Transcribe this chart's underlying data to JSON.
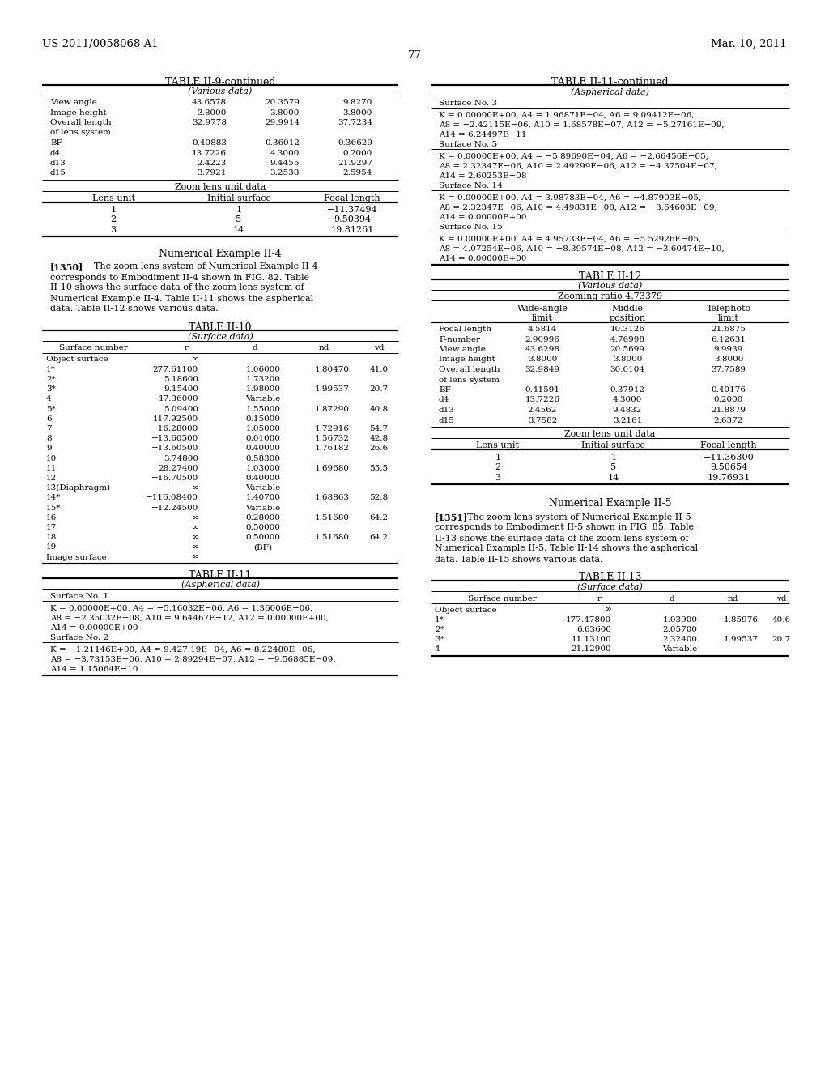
{
  "page_number": "77",
  "header_left": "US 2011/0058068 A1",
  "header_right": "Mar. 10, 2011",
  "bg_color": "#ffffff",
  "table_ii9_title": "TABLE II-9-continued",
  "table_ii9_subtitle": "(Various data)",
  "table_ii9_various": [
    [
      "View angle",
      "43.6578",
      "20.3579",
      "9.8270"
    ],
    [
      "Image height",
      "3.8000",
      "3.8000",
      "3.8000"
    ],
    [
      "Overall length",
      "32.9778",
      "29.9914",
      "37.7234"
    ],
    [
      "of lens system",
      "",
      "",
      ""
    ],
    [
      "BF",
      "0.40883",
      "0.36012",
      "0.36629"
    ],
    [
      "d4",
      "13.7226",
      "4.3000",
      "0.2000"
    ],
    [
      "d13",
      "2.4223",
      "9.4455",
      "21.9297"
    ],
    [
      "d15",
      "3.7921",
      "3.2538",
      "2.5954"
    ]
  ],
  "table_ii9_zoom_subtitle": "Zoom lens unit data",
  "table_ii9_zoom_headers": [
    "Lens unit",
    "Initial surface",
    "Focal length"
  ],
  "table_ii9_zoom_rows": [
    [
      "1",
      "1",
      "−11.37494"
    ],
    [
      "2",
      "5",
      "9.50394"
    ],
    [
      "3",
      "14",
      "19.81261"
    ]
  ],
  "numerical_example_ii4_title": "Numerical Example II-4",
  "table_ii10_title": "TABLE II-10",
  "table_ii10_subtitle": "(Surface data)",
  "table_ii10_headers": [
    "Surface number",
    "r",
    "d",
    "nd",
    "vd"
  ],
  "table_ii10_rows": [
    [
      "Object surface",
      "∞",
      "",
      "",
      ""
    ],
    [
      "1*",
      "277.61100",
      "1.06000",
      "1.80470",
      "41.0"
    ],
    [
      "2*",
      "5.18600",
      "1.73200",
      "",
      ""
    ],
    [
      "3*",
      "9.15400",
      "1.98000",
      "1.99537",
      "20.7"
    ],
    [
      "4",
      "17.36000",
      "Variable",
      "",
      ""
    ],
    [
      "5*",
      "5.09400",
      "1.55000",
      "1.87290",
      "40.8"
    ],
    [
      "6",
      "117.92500",
      "0.15000",
      "",
      ""
    ],
    [
      "7",
      "−16.28000",
      "1.05000",
      "1.72916",
      "54.7"
    ],
    [
      "8",
      "−13.60500",
      "0.01000",
      "1.56732",
      "42.8"
    ],
    [
      "9",
      "−13.60500",
      "0.40000",
      "1.76182",
      "26.6"
    ],
    [
      "10",
      "3.74800",
      "0.58300",
      "",
      ""
    ],
    [
      "11",
      "28.27400",
      "1.03000",
      "1.69680",
      "55.5"
    ],
    [
      "12",
      "−16.70500",
      "0.40000",
      "",
      ""
    ],
    [
      "13(Diaphragm)",
      "∞",
      "Variable",
      "",
      ""
    ],
    [
      "14*",
      "−116.08400",
      "1.40700",
      "1.68863",
      "52.8"
    ],
    [
      "15*",
      "−12.24500",
      "Variable",
      "",
      ""
    ],
    [
      "16",
      "∞",
      "0.28000",
      "1.51680",
      "64.2"
    ],
    [
      "17",
      "∞",
      "0.50000",
      "",
      ""
    ],
    [
      "18",
      "∞",
      "0.50000",
      "1.51680",
      "64.2"
    ],
    [
      "19",
      "∞",
      "(BF)",
      "",
      ""
    ],
    [
      "Image surface",
      "∞",
      "",
      "",
      ""
    ]
  ],
  "table_ii11_title": "TABLE II-11",
  "table_ii11_subtitle": "(Aspherical data)",
  "table_ii11_surface1": "Surface No. 1",
  "table_ii11_s1_text": "K = 0.00000E+00, A4 = −5.16032E−06, A6 = 1.36006E−06,\nA8 = −2.35032E−08, A10 = 9.64467E−12, A12 = 0.00000E+00,\nA14 = 0.00000E+00",
  "table_ii11_surface2": "Surface No. 2",
  "table_ii11_s2_text": "K = −1.21146E+00, A4 = 9.427 19E−04, A6 = 8.22480E−06,\nA8 = −3.73153E−06, A10 = 2.89294E−07, A12 = −9.56885E−09,\nA14 = 1.15064E−10",
  "table_ii11_continued_title": "TABLE II-11-continued",
  "table_ii11_continued_subtitle": "(Aspherical data)",
  "table_ii11_s3_header": "Surface No. 3",
  "table_ii11_s3_text": "K = 0.00000E+00, A4 = 1.96871E−04, A6 = 9.09412E−06,\nA8 = −2.42115E−06, A10 = 1.68578E−07, A12 = −5.27161E−09,\nA14 = 6.24497E−11",
  "table_ii11_s5_header": "Surface No. 5",
  "table_ii11_s5_text": "K = 0.00000E+00, A4 = −5.89690E−04, A6 = −2.66456E−05,\nA8 = 2.32347E−06, A10 = 2.49299E−06, A12 = −4.37504E−07,\nA14 = 2.60253E−08",
  "table_ii11_s14_header": "Surface No. 14",
  "table_ii11_s14_text": "K = 0.00000E+00, A4 = 3.98783E−04, A6 = −4.87903E−05,\nA8 = 2.32347E−06, A10 = 4.49831E−08, A12 = −3.64603E−09,\nA14 = 0.00000E+00",
  "table_ii11_s15_header": "Surface No. 15",
  "table_ii11_s15_text": "K = 0.00000E+00, A4 = 4.95733E−04, A6 = −5.52926E−05,\nA8 = 4.07254E−06, A10 = −8.39574E−08, A12 = −3.60474E−10,\nA14 = 0.00000E+00",
  "table_ii12_title": "TABLE II-12",
  "table_ii12_subtitle": "(Various data)",
  "table_ii12_zoom_ratio": "Zooming ratio 4.73379",
  "table_ii12_col_headers_line1": [
    "",
    "Wide-angle",
    "Middle",
    "Telephoto"
  ],
  "table_ii12_col_headers_line2": [
    "",
    "limit",
    "position",
    "limit"
  ],
  "table_ii12_various": [
    [
      "Focal length",
      "4.5814",
      "10.3126",
      "21.6875"
    ],
    [
      "F-number",
      "2.90996",
      "4.76998",
      "6.12631"
    ],
    [
      "View angle",
      "43.6298",
      "20.5699",
      "9.9939"
    ],
    [
      "Image height",
      "3.8000",
      "3.8000",
      "3.8000"
    ],
    [
      "Overall length",
      "32.9849",
      "30.0104",
      "37.7589"
    ],
    [
      "of lens system",
      "",
      "",
      ""
    ],
    [
      "BF",
      "0.41591",
      "0.37912",
      "0.40176"
    ],
    [
      "d4",
      "13.7226",
      "4.3000",
      "0.2000"
    ],
    [
      "d13",
      "2.4562",
      "9.4832",
      "21.8879"
    ],
    [
      "d15",
      "3.7582",
      "3.2161",
      "2.6372"
    ]
  ],
  "table_ii12_zoom_subtitle": "Zoom lens unit data",
  "table_ii12_zoom_headers": [
    "Lens unit",
    "Initial surface",
    "Focal length"
  ],
  "table_ii12_zoom_rows": [
    [
      "1",
      "1",
      "−11.36300"
    ],
    [
      "2",
      "5",
      "9.50654"
    ],
    [
      "3",
      "14",
      "19.76931"
    ]
  ],
  "numerical_example_ii5_title": "Numerical Example II-5",
  "numerical_example_ii5_lines": [
    "[1351]    The zoom lens system of Numerical Example II-5",
    "corresponds to Embodiment II-5 shown in FIG. 85. Table",
    "II-13 shows the surface data of the zoom lens system of",
    "Numerical Example II-5. Table II-14 shows the aspherical",
    "data. Table II-15 shows various data."
  ],
  "table_ii13_title": "TABLE II-13",
  "table_ii13_subtitle": "(Surface data)",
  "table_ii13_headers": [
    "Surface number",
    "r",
    "d",
    "nd",
    "vd"
  ],
  "table_ii13_rows": [
    [
      "Object surface",
      "∞",
      "",
      "",
      ""
    ],
    [
      "1*",
      "177.47800",
      "1.03900",
      "1.85976",
      "40.6"
    ],
    [
      "2*",
      "6.63600",
      "2.05700",
      "",
      ""
    ],
    [
      "3*",
      "11.13100",
      "2.32400",
      "1.99537",
      "20.7"
    ],
    [
      "4",
      "21.12900",
      "Variable",
      "",
      ""
    ]
  ]
}
